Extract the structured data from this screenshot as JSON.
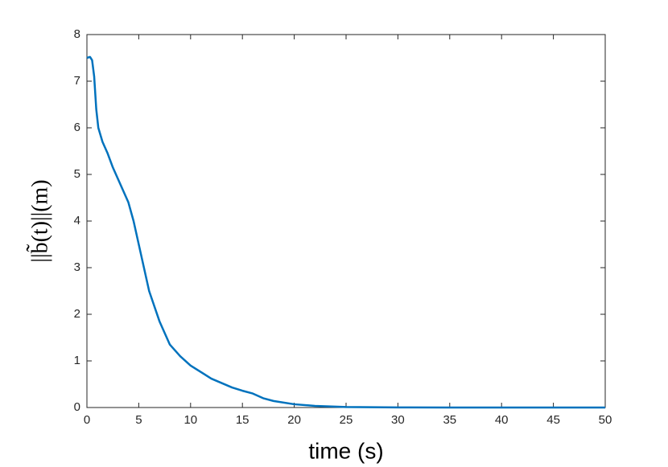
{
  "chart_data": {
    "type": "line",
    "x_label": "time (s)",
    "y_label": "||b̃(t)||(m)",
    "x": [
      0,
      0.3,
      0.5,
      0.7,
      0.9,
      1.1,
      1.5,
      2,
      2.5,
      3,
      3.5,
      4,
      4.5,
      5,
      5.5,
      6,
      7,
      8,
      9,
      10,
      12,
      14,
      15,
      16,
      17,
      18,
      20,
      22,
      25,
      30,
      35,
      50
    ],
    "values": [
      7.5,
      7.52,
      7.45,
      7.1,
      6.4,
      6.0,
      5.7,
      5.45,
      5.15,
      4.9,
      4.65,
      4.4,
      4.0,
      3.5,
      3.0,
      2.5,
      1.85,
      1.35,
      1.1,
      0.9,
      0.62,
      0.43,
      0.36,
      0.3,
      0.2,
      0.14,
      0.07,
      0.035,
      0.01,
      0.002,
      0,
      0
    ],
    "color": "#0072bd",
    "xlim": [
      0,
      50
    ],
    "xticks": [
      0,
      5,
      10,
      15,
      20,
      25,
      30,
      35,
      40,
      45,
      50
    ],
    "ylim": [
      0,
      8
    ],
    "yticks": [
      0,
      1,
      2,
      3,
      4,
      5,
      6,
      7,
      8
    ],
    "grid": false
  }
}
